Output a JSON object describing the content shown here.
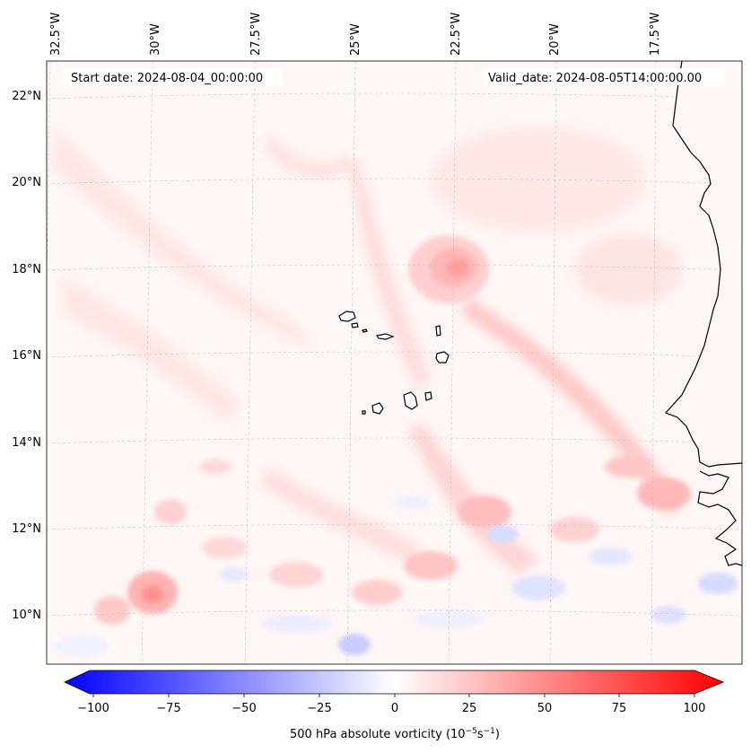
{
  "map": {
    "start_label": "Start date: 2024-08-04_00:00:00",
    "valid_label": "Valid_date: 2024-08-05T14:00:00.00",
    "lon_labels": [
      "32.5°W",
      "30°W",
      "27.5°W",
      "25°W",
      "22.5°W",
      "20°W",
      "17.5°W"
    ],
    "lat_labels": [
      "22°N",
      "20°N",
      "18°N",
      "16°N",
      "14°N",
      "12°N",
      "10°N"
    ]
  },
  "colorbar": {
    "ticks": [
      "−100",
      "−75",
      "−50",
      "−25",
      "0",
      "25",
      "50",
      "75",
      "100"
    ],
    "label": "500 hPa absolute vorticity (10",
    "label_exp1": "−5",
    "label_mid": "s",
    "label_exp2": "−1",
    "label_end": ")"
  },
  "colors": {
    "negative": "#0000ff",
    "positive": "#ff0000",
    "neutral": "#ffffff",
    "coastline": "#000000"
  }
}
